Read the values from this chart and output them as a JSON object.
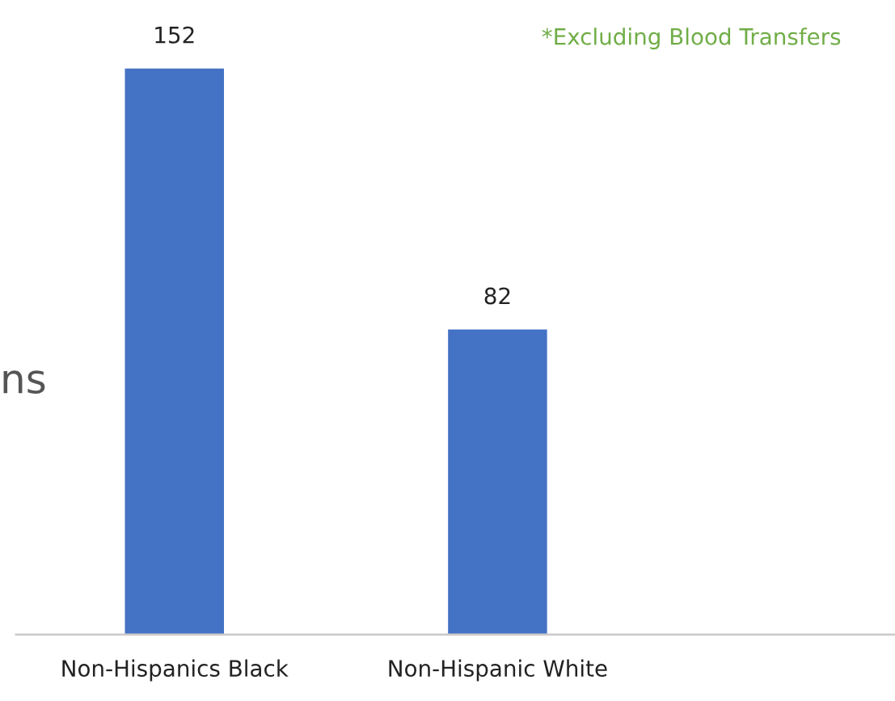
{
  "chart_data": {
    "type": "bar",
    "categories": [
      "Non-Hispanics Black",
      "Non-Hispanic White"
    ],
    "series": [
      {
        "color": "#4472c4",
        "values": [
          152,
          82
        ]
      }
    ],
    "data_labels": true,
    "grid": false,
    "annotations": [
      "*Excluding Blood Transfers",
      "ns"
    ]
  }
}
